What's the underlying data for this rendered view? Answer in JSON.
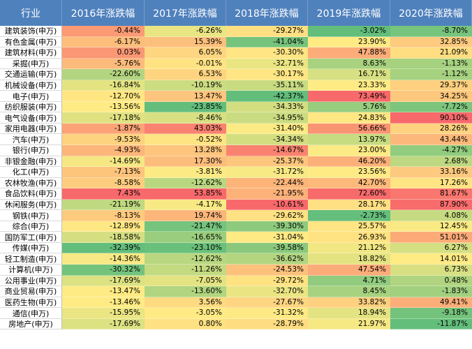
{
  "header": {
    "industry": "行业",
    "years": [
      "2016年涨跌幅",
      "2017年涨跌幅",
      "2018年涨跌幅",
      "2019年涨跌幅",
      "2020年涨跌幅"
    ]
  },
  "colors": {
    "header_bg": "#4f81bd",
    "scale_low": "#63be7b",
    "scale_mid": "#ffeb84",
    "scale_high": "#f8696b"
  },
  "rows": [
    {
      "name": "建筑装饰(申万)",
      "values": [
        "-0.44%",
        "-6.26%",
        "-29.27%",
        "-3.02%",
        "-8.70%"
      ]
    },
    {
      "name": "有色金属(申万)",
      "values": [
        "-6.17%",
        "15.39%",
        "-41.04%",
        "23.90%",
        "32.85%"
      ]
    },
    {
      "name": "建筑材料(申万)",
      "values": [
        "0.03%",
        "6.05%",
        "-30.30%",
        "47.88%",
        "21.09%"
      ]
    },
    {
      "name": "采掘(申万)",
      "values": [
        "-5.76%",
        "-0.01%",
        "-32.71%",
        "8.63%",
        "-1.13%"
      ]
    },
    {
      "name": "交通运输(申万)",
      "values": [
        "-22.60%",
        "6.53%",
        "-30.17%",
        "16.71%",
        "-1.12%"
      ]
    },
    {
      "name": "机械设备(申万)",
      "values": [
        "-16.84%",
        "-10.19%",
        "-35.11%",
        "23.33%",
        "29.37%"
      ]
    },
    {
      "name": "电子(申万)",
      "values": [
        "-12.70%",
        "13.47%",
        "-42.37%",
        "73.49%",
        "34.25%"
      ]
    },
    {
      "name": "纺织服装(申万)",
      "values": [
        "-13.56%",
        "-23.85%",
        "-34.33%",
        "5.76%",
        "-7.72%"
      ]
    },
    {
      "name": "电气设备(申万)",
      "values": [
        "-17.18%",
        "-8.46%",
        "-34.95%",
        "24.83%",
        "90.10%"
      ]
    },
    {
      "name": "家用电器(申万)",
      "values": [
        "-1.87%",
        "43.03%",
        "-31.40%",
        "56.66%",
        "28.26%"
      ]
    },
    {
      "name": "汽车(申万)",
      "values": [
        "-9.53%",
        "-0.52%",
        "-34.34%",
        "13.97%",
        "43.44%"
      ]
    },
    {
      "name": "银行(申万)",
      "values": [
        "-4.93%",
        "13.28%",
        "-14.67%",
        "23.00%",
        "-4.27%"
      ]
    },
    {
      "name": "非银金融(申万)",
      "values": [
        "-14.69%",
        "17.30%",
        "-25.37%",
        "46.20%",
        "2.68%"
      ]
    },
    {
      "name": "化工(申万)",
      "values": [
        "-7.13%",
        "-3.81%",
        "-31.72%",
        "23.56%",
        "33.16%"
      ]
    },
    {
      "name": "农林牧渔(申万)",
      "values": [
        "-8.58%",
        "-12.62%",
        "-22.44%",
        "42.70%",
        "17.26%"
      ]
    },
    {
      "name": "食品饮料(申万)",
      "values": [
        "7.43%",
        "53.85%",
        "-21.95%",
        "72.60%",
        "81.67%"
      ]
    },
    {
      "name": "休闲服务(申万)",
      "values": [
        "-21.19%",
        "-4.17%",
        "-10.61%",
        "28.17%",
        "87.90%"
      ]
    },
    {
      "name": "钢铁(申万)",
      "values": [
        "-8.13%",
        "19.74%",
        "-29.62%",
        "-2.73%",
        "4.08%"
      ]
    },
    {
      "name": "综合(申万)",
      "values": [
        "-12.89%",
        "-21.47%",
        "-39.30%",
        "25.57%",
        "12.45%"
      ]
    },
    {
      "name": "国防军工(申万)",
      "values": [
        "-18.58%",
        "-16.65%",
        "-31.04%",
        "26.93%",
        "51.01%"
      ]
    },
    {
      "name": "传媒(申万)",
      "values": [
        "-32.39%",
        "-23.10%",
        "-39.58%",
        "21.12%",
        "6.27%"
      ]
    },
    {
      "name": "轻工制造(申万)",
      "values": [
        "-14.36%",
        "-12.62%",
        "-36.62%",
        "18.82%",
        "14.01%"
      ]
    },
    {
      "name": "计算机(申万)",
      "values": [
        "-30.32%",
        "-11.26%",
        "-24.53%",
        "47.54%",
        "6.73%"
      ]
    },
    {
      "name": "公用事业(申万)",
      "values": [
        "-17.69%",
        "-7.05%",
        "-29.72%",
        "4.71%",
        "0.48%"
      ]
    },
    {
      "name": "商业贸易(申万)",
      "values": [
        "-13.47%",
        "-13.60%",
        "-32.70%",
        "8.45%",
        "-1.83%"
      ]
    },
    {
      "name": "医药生物(申万)",
      "values": [
        "-13.46%",
        "3.56%",
        "-27.67%",
        "33.82%",
        "49.41%"
      ]
    },
    {
      "name": "通信(申万)",
      "values": [
        "-15.95%",
        "-3.05%",
        "-31.32%",
        "18.94%",
        "-9.18%"
      ]
    },
    {
      "name": "房地产(申万)",
      "values": [
        "-17.69%",
        "0.80%",
        "-28.79%",
        "21.97%",
        "-11.87%"
      ]
    }
  ]
}
